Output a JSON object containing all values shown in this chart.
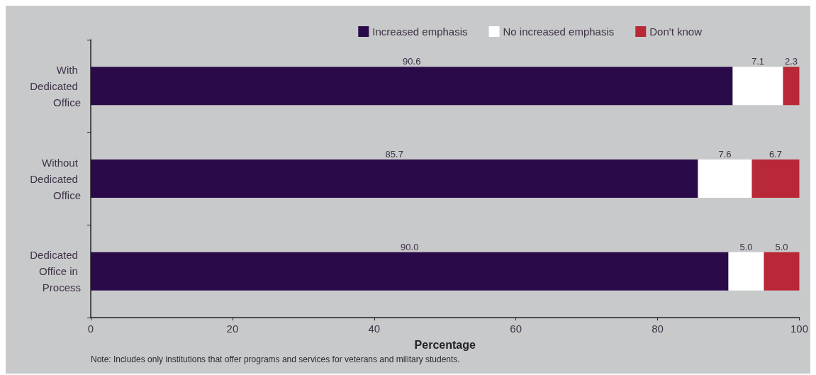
{
  "chart_data": {
    "type": "bar",
    "orientation": "horizontal",
    "stacked": true,
    "categories": [
      "With Dedicated Office",
      "Without Dedicated Office",
      "Dedicated Office in Process"
    ],
    "series": [
      {
        "name": "Increased emphasis",
        "color": "#2a0a48",
        "values": [
          90.6,
          85.7,
          90.0
        ],
        "value_labels": [
          "90.6",
          "85.7",
          "90.0"
        ]
      },
      {
        "name": "No increased emphasis",
        "color": "#ffffff",
        "values": [
          7.1,
          7.6,
          5.0
        ],
        "value_labels": [
          "7.1",
          "7.6",
          "5.0"
        ]
      },
      {
        "name": "Don't know",
        "color": "#b82837",
        "values": [
          2.3,
          6.7,
          5.0
        ],
        "value_labels": [
          "2.3",
          "6.7",
          "5.0"
        ]
      }
    ],
    "xlim": [
      0,
      100
    ],
    "xticks": [
      0,
      20,
      40,
      60,
      80,
      100
    ],
    "xlabel": "Percentage",
    "legend": "top",
    "grid": false,
    "annotations": [
      "Note: Includes only institutions that offer programs and services for veterans and military students."
    ]
  }
}
